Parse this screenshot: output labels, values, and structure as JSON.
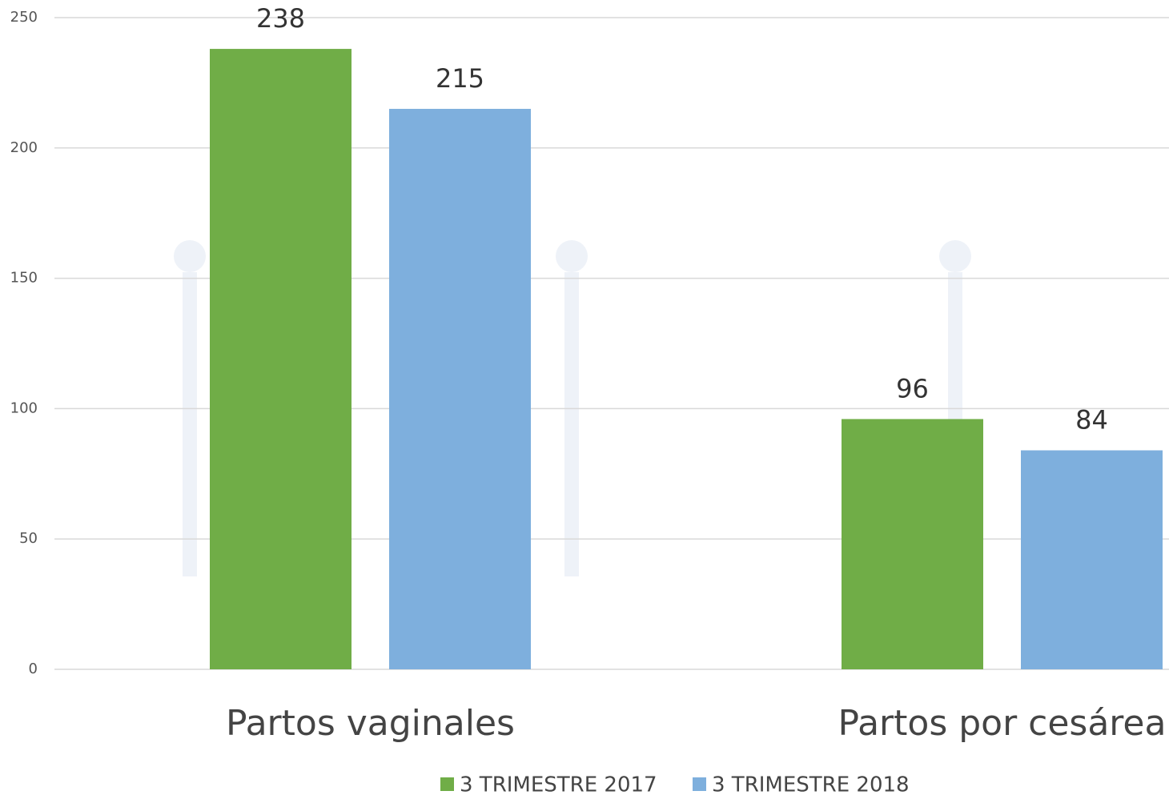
{
  "chart_data": {
    "type": "bar",
    "categories": [
      "Partos vaginales",
      "Partos por cesárea"
    ],
    "series": [
      {
        "name": "3 TRIMESTRE 2017",
        "color": "#70ad47",
        "values": [
          238,
          96
        ]
      },
      {
        "name": "3 TRIMESTRE 2018",
        "color": "#7eafdd",
        "values": [
          215,
          84
        ]
      }
    ],
    "ylim": [
      0,
      250
    ],
    "yticks": [
      0,
      50,
      100,
      150,
      200,
      250
    ],
    "grid": true,
    "legend": "bottom"
  }
}
